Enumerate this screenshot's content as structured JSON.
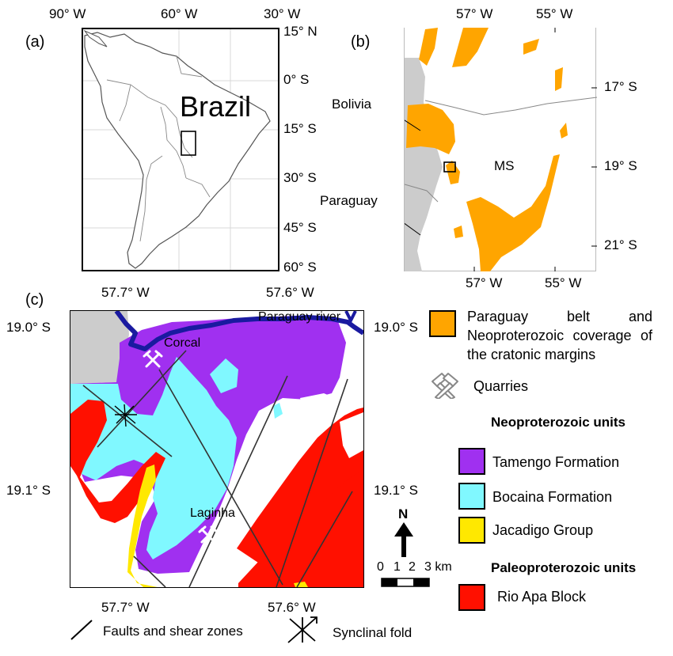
{
  "panel_a": {
    "tag": "(a)",
    "top_labels": [
      "90° W",
      "60° W",
      "30° W"
    ],
    "right_labels": [
      "15° N",
      "0° S",
      "15° S",
      "30° S",
      "45° S",
      "60° S"
    ],
    "country_label": "Brazil"
  },
  "panel_b": {
    "tag": "(b)",
    "top_labels": [
      "57° W",
      "55° W"
    ],
    "bottom_labels": [
      "57° W",
      "55° W"
    ],
    "right_labels": [
      "17° S",
      "19° S",
      "21° S"
    ],
    "bolivia": "Bolivia",
    "paraguay": "Paraguay",
    "state": "MS"
  },
  "panel_c": {
    "tag": "(c)",
    "top_labels": [
      "57.7° W",
      "57.6° W"
    ],
    "bottom_labels": [
      "57.7° W",
      "57.6° W"
    ],
    "left_labels": [
      "19.0° S",
      "19.1° S"
    ],
    "right_labels": [
      "19.0° S",
      "19.1° S"
    ],
    "river": "Paraguay river",
    "quarry_1": "Corcal",
    "quarry_2": "Laginha",
    "north": "N",
    "scale_ticks": [
      "0",
      "1",
      "2",
      "3 km"
    ]
  },
  "legend": {
    "paraguay_belt": "Paraguay belt and Neoproterozoic coverage of the cratonic margins",
    "quarries": "Quarries",
    "neo_head": "Neoproterozoic units",
    "tamengo": "Tamengo Formation",
    "bocaina": "Bocaina Formation",
    "jacadigo": "Jacadigo Group",
    "paleo_head": "Paleoproterozoic units",
    "rio_apa": "Rio Apa Block",
    "faults": "Faults and shear zones",
    "fold": "Synclinal fold"
  },
  "colors": {
    "orange": "#ffa500",
    "tamengo": "#a030f0",
    "bocaina": "#80f8ff",
    "jacadigo": "#ffe800",
    "rio_apa": "#ff1000",
    "river": "#1a1aa0",
    "neighbor": "#cccccc"
  }
}
